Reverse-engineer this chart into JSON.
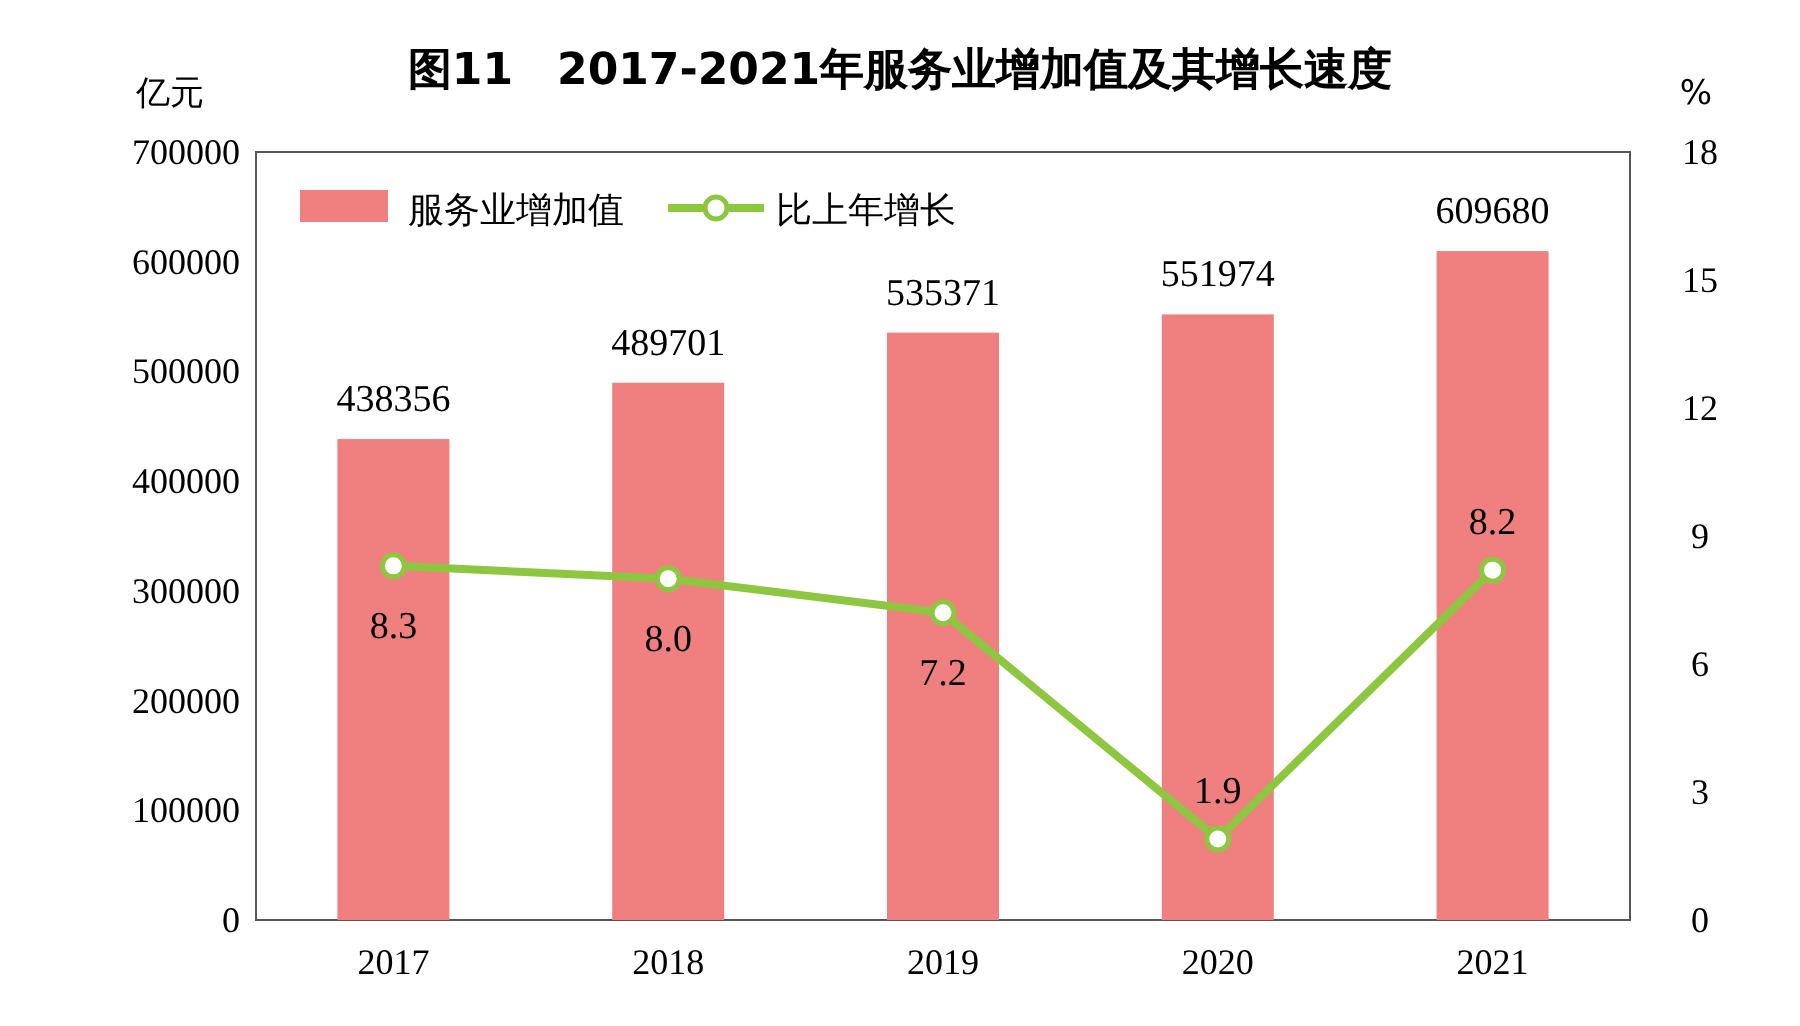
{
  "chart_data": {
    "type": "bar",
    "title": "图11　2017-2021年服务业增加值及其增长速度",
    "ylabel": "亿元",
    "y2label": "%",
    "categories": [
      "2017",
      "2018",
      "2019",
      "2020",
      "2021"
    ],
    "series": [
      {
        "name": "服务业增加值",
        "color": "#f08080",
        "values": [
          438356,
          489701,
          535371,
          551974,
          609680
        ],
        "value_labels": [
          "438356",
          "489701",
          "535371",
          "551974",
          "609680"
        ]
      },
      {
        "name": "比上年增长",
        "type": "line",
        "axis": "y2",
        "color": "#8dc63f",
        "values": [
          8.3,
          8.0,
          7.2,
          1.9,
          8.2
        ],
        "value_labels": [
          "8.3",
          "8.0",
          "7.2",
          "1.9",
          "8.2"
        ],
        "marker": "circle"
      }
    ],
    "ylim": [
      0,
      700000
    ],
    "yticks": [
      0,
      100000,
      200000,
      300000,
      400000,
      500000,
      600000,
      700000
    ],
    "y2lim": [
      0,
      18
    ],
    "y2ticks": [
      0,
      3,
      6,
      9,
      12,
      15,
      18
    ],
    "legend": "top left",
    "grid": false
  }
}
